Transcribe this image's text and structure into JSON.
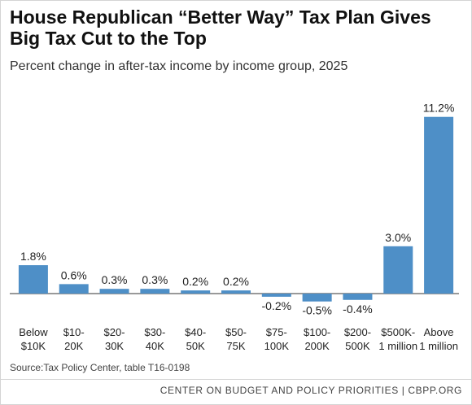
{
  "title": "House Republican “Better Way” Tax Plan Gives Big Tax Cut to the Top",
  "subtitle": "Percent change in after-tax income by income group, 2025",
  "source": "Source:Tax Policy Center, table T16-0198",
  "footer": "CENTER ON BUDGET AND POLICY PRIORITIES | CBPP.ORG",
  "colors": {
    "bar": "#4e8fc7",
    "text": "#222222"
  },
  "chart_data": {
    "type": "bar",
    "title": "House Republican “Better Way” Tax Plan Gives Big Tax Cut to the Top",
    "subtitle": "Percent change in after-tax income by income group, 2025",
    "xlabel": "",
    "ylabel": "",
    "categories": [
      [
        "Below",
        "$10K"
      ],
      [
        "$10-",
        "20K"
      ],
      [
        "$20-",
        "30K"
      ],
      [
        "$30-",
        "40K"
      ],
      [
        "$40-",
        "50K"
      ],
      [
        "$50-",
        "75K"
      ],
      [
        "$75-",
        "100K"
      ],
      [
        "$100-",
        "200K"
      ],
      [
        "$200-",
        "500K"
      ],
      [
        "$500K-",
        "1 million"
      ],
      [
        "Above",
        "1 million"
      ]
    ],
    "values": [
      1.8,
      0.6,
      0.3,
      0.3,
      0.2,
      0.2,
      -0.2,
      -0.5,
      -0.4,
      3.0,
      11.2
    ],
    "value_labels": [
      "1.8%",
      "0.6%",
      "0.3%",
      "0.3%",
      "0.2%",
      "0.2%",
      "-0.2%",
      "-0.5%",
      "-0.4%",
      "3.0%",
      "11.2%"
    ],
    "grid": false,
    "legend": "none"
  }
}
